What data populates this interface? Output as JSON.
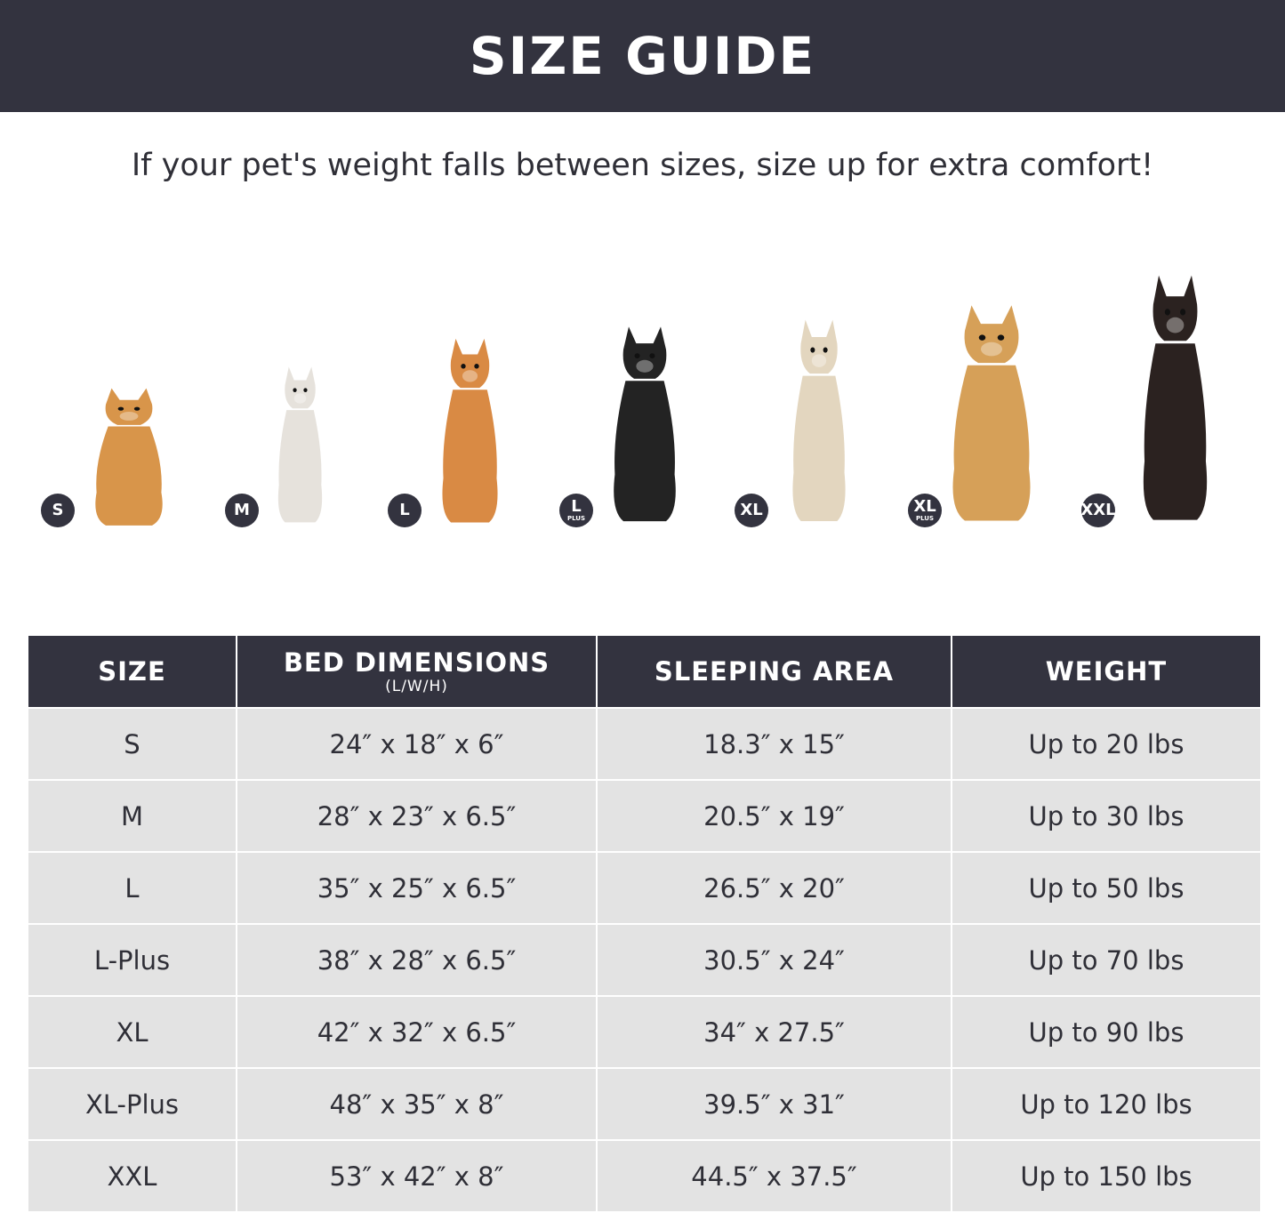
{
  "header": {
    "title": "SIZE GUIDE"
  },
  "subtitle": "If your pet's weight falls between sizes, size up for extra comfort!",
  "colors": {
    "dark": "#33333f",
    "row": "#e3e3e3"
  },
  "dogs": [
    {
      "badge": "S",
      "plus": "",
      "color": "#d8954a"
    },
    {
      "badge": "M",
      "plus": "",
      "color": "#e6e2dc"
    },
    {
      "badge": "L",
      "plus": "",
      "color": "#d98a44"
    },
    {
      "badge": "L",
      "plus": "PLUS",
      "color": "#232323"
    },
    {
      "badge": "XL",
      "plus": "",
      "color": "#e3d6bf"
    },
    {
      "badge": "XL",
      "plus": "PLUS",
      "color": "#d6a058"
    },
    {
      "badge": "XXL",
      "plus": "",
      "color": "#2b2220"
    }
  ],
  "table": {
    "headers": [
      "SIZE",
      "BED DIMENSIONS",
      "SLEEPING AREA",
      "WEIGHT"
    ],
    "header_note": "(L/W/H)",
    "rows": [
      [
        "S",
        "24″ x 18″ x 6″",
        "18.3″ x 15″",
        "Up to 20 lbs"
      ],
      [
        "M",
        "28″ x 23″ x 6.5″",
        "20.5″ x 19″",
        "Up to 30 lbs"
      ],
      [
        "L",
        "35″ x 25″ x 6.5″",
        "26.5″ x 20″",
        "Up to 50 lbs"
      ],
      [
        "L-Plus",
        "38″ x 28″ x 6.5″",
        "30.5″ x 24″",
        "Up to 70 lbs"
      ],
      [
        "XL",
        "42″ x 32″ x 6.5″",
        "34″ x 27.5″",
        "Up to 90 lbs"
      ],
      [
        "XL-Plus",
        "48″ x 35″ x 8″",
        "39.5″ x 31″",
        "Up to 120 lbs"
      ],
      [
        "XXL",
        "53″ x 42″ x 8″",
        "44.5″ x 37.5″",
        "Up to 150 lbs"
      ]
    ]
  }
}
